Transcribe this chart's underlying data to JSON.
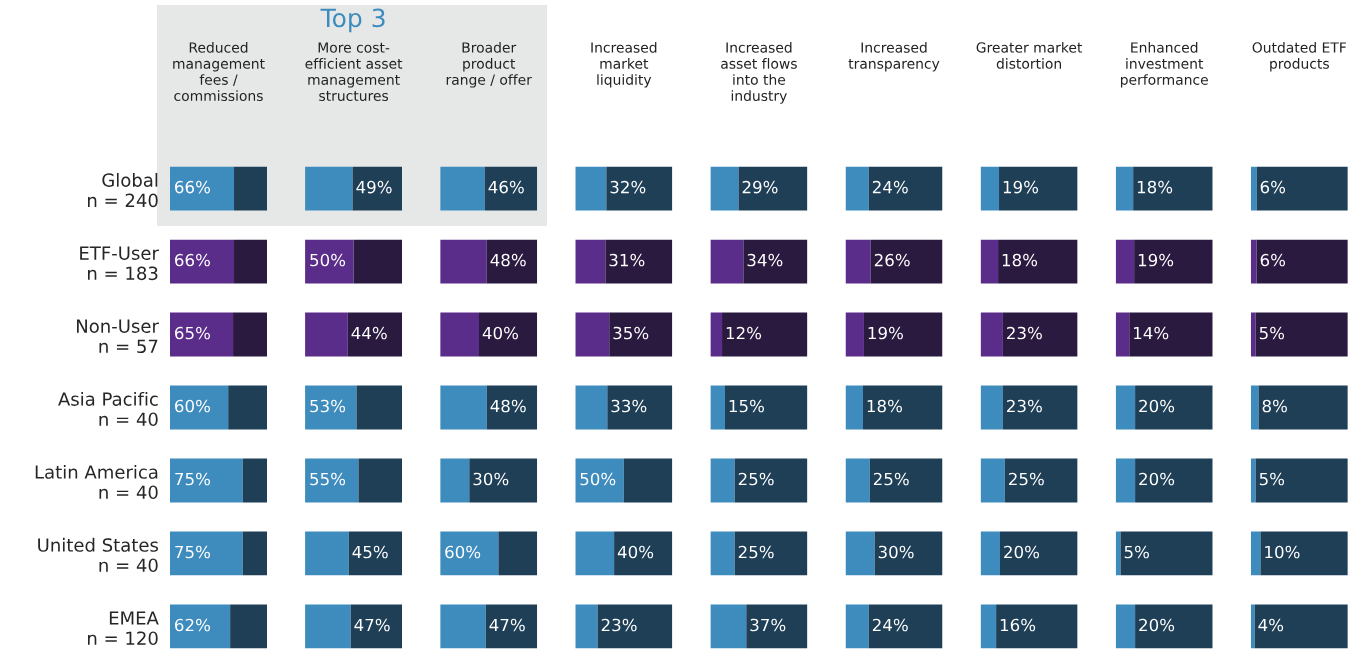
{
  "chart_data": [
    {
      "type": "bar",
      "orientation": "horizontal",
      "stacked": true,
      "tick_labels": "y",
      "title": "Reduced\nmanagement\nfees /\ncommissions",
      "xlim": [
        0,
        100
      ],
      "categories": [
        "Global\nn = 240",
        "ETF-User\nn = 183",
        "Non-User\nn = 57",
        "Asia Pacific\nn = 40",
        "Latin America\nn = 40",
        "United States\nn = 40",
        "EMEA\nn = 120"
      ],
      "series": [
        {
          "colors": [
            "#3e8bbe",
            "#5b2d8a",
            "#5b2d8a",
            "#3e8bbe",
            "#3e8bbe",
            "#3e8bbe",
            "#3e8bbe"
          ],
          "values": [
            66,
            66,
            65,
            60,
            75,
            75,
            62
          ],
          "value_labels": [
            "66%",
            "66%",
            "65%",
            "60%",
            "75%",
            "75%",
            "62%"
          ]
        },
        {
          "colors": [
            "#1f3f57",
            "#2b1a40",
            "#2b1a40",
            "#1f3f57",
            "#1f3f57",
            "#1f3f57",
            "#1f3f57"
          ],
          "values": [
            34,
            34,
            35,
            40,
            25,
            25,
            38
          ]
        }
      ]
    },
    {
      "type": "bar",
      "orientation": "horizontal",
      "stacked": true,
      "tick_labels": false,
      "title": "More cost-\nefficient asset\nmanagement\nstructures",
      "annotations": [
        "Top 3"
      ],
      "xlim": [
        0,
        100
      ],
      "series": [
        {
          "colors": [
            "#3e8bbe",
            "#5b2d8a",
            "#5b2d8a",
            "#3e8bbe",
            "#3e8bbe",
            "#3e8bbe",
            "#3e8bbe"
          ],
          "values": [
            49,
            50,
            44,
            53,
            55,
            45,
            47
          ],
          "value_labels": [
            "49%",
            "50%",
            "44%",
            "53%",
            "55%",
            "45%",
            "47%"
          ]
        },
        {
          "colors": [
            "#1f3f57",
            "#2b1a40",
            "#2b1a40",
            "#1f3f57",
            "#1f3f57",
            "#1f3f57",
            "#1f3f57"
          ],
          "values": [
            51,
            50,
            56,
            47,
            45,
            55,
            53
          ]
        }
      ]
    },
    {
      "type": "bar",
      "orientation": "horizontal",
      "stacked": true,
      "tick_labels": false,
      "title": "Broader\nproduct\nrange / offer",
      "xlim": [
        0,
        100
      ],
      "series": [
        {
          "colors": [
            "#3e8bbe",
            "#5b2d8a",
            "#5b2d8a",
            "#3e8bbe",
            "#3e8bbe",
            "#3e8bbe",
            "#3e8bbe"
          ],
          "values": [
            46,
            48,
            40,
            48,
            30,
            60,
            47
          ],
          "value_labels": [
            "46%",
            "48%",
            "40%",
            "48%",
            "30%",
            "60%",
            "47%"
          ]
        },
        {
          "colors": [
            "#1f3f57",
            "#2b1a40",
            "#2b1a40",
            "#1f3f57",
            "#1f3f57",
            "#1f3f57",
            "#1f3f57"
          ],
          "values": [
            54,
            52,
            60,
            52,
            70,
            40,
            53
          ]
        }
      ]
    },
    {
      "type": "bar",
      "orientation": "horizontal",
      "stacked": true,
      "tick_labels": false,
      "title": "Increased\nmarket\nliquidity",
      "xlim": [
        0,
        100
      ],
      "series": [
        {
          "colors": [
            "#3e8bbe",
            "#5b2d8a",
            "#5b2d8a",
            "#3e8bbe",
            "#3e8bbe",
            "#3e8bbe",
            "#3e8bbe"
          ],
          "values": [
            32,
            31,
            35,
            33,
            50,
            40,
            23
          ],
          "value_labels": [
            "32%",
            "31%",
            "35%",
            "33%",
            "50%",
            "40%",
            "23%"
          ]
        },
        {
          "colors": [
            "#1f3f57",
            "#2b1a40",
            "#2b1a40",
            "#1f3f57",
            "#1f3f57",
            "#1f3f57",
            "#1f3f57"
          ],
          "values": [
            68,
            69,
            65,
            67,
            50,
            60,
            77
          ]
        }
      ]
    },
    {
      "type": "bar",
      "orientation": "horizontal",
      "stacked": true,
      "tick_labels": false,
      "title": "Increased\nasset flows\ninto the\nindustry",
      "xlim": [
        0,
        100
      ],
      "series": [
        {
          "colors": [
            "#3e8bbe",
            "#5b2d8a",
            "#5b2d8a",
            "#3e8bbe",
            "#3e8bbe",
            "#3e8bbe",
            "#3e8bbe"
          ],
          "values": [
            29,
            34,
            12,
            15,
            25,
            25,
            37
          ],
          "value_labels": [
            "29%",
            "34%",
            "12%",
            "15%",
            "25%",
            "25%",
            "37%"
          ]
        },
        {
          "colors": [
            "#1f3f57",
            "#2b1a40",
            "#2b1a40",
            "#1f3f57",
            "#1f3f57",
            "#1f3f57",
            "#1f3f57"
          ],
          "values": [
            71,
            66,
            88,
            85,
            75,
            75,
            63
          ]
        }
      ]
    },
    {
      "type": "bar",
      "orientation": "horizontal",
      "stacked": true,
      "tick_labels": false,
      "title": "Increased\ntransparency",
      "xlim": [
        0,
        100
      ],
      "series": [
        {
          "colors": [
            "#3e8bbe",
            "#5b2d8a",
            "#5b2d8a",
            "#3e8bbe",
            "#3e8bbe",
            "#3e8bbe",
            "#3e8bbe"
          ],
          "values": [
            24,
            26,
            19,
            18,
            25,
            30,
            24
          ],
          "value_labels": [
            "24%",
            "26%",
            "19%",
            "18%",
            "25%",
            "30%",
            "24%"
          ]
        },
        {
          "colors": [
            "#1f3f57",
            "#2b1a40",
            "#2b1a40",
            "#1f3f57",
            "#1f3f57",
            "#1f3f57",
            "#1f3f57"
          ],
          "values": [
            76,
            74,
            81,
            82,
            75,
            70,
            76
          ]
        }
      ]
    },
    {
      "type": "bar",
      "orientation": "horizontal",
      "stacked": true,
      "tick_labels": false,
      "title": "Greater market\ndistortion",
      "xlim": [
        0,
        100
      ],
      "series": [
        {
          "colors": [
            "#3e8bbe",
            "#5b2d8a",
            "#5b2d8a",
            "#3e8bbe",
            "#3e8bbe",
            "#3e8bbe",
            "#3e8bbe"
          ],
          "values": [
            19,
            18,
            23,
            23,
            25,
            20,
            16
          ],
          "value_labels": [
            "19%",
            "18%",
            "23%",
            "23%",
            "25%",
            "20%",
            "16%"
          ]
        },
        {
          "colors": [
            "#1f3f57",
            "#2b1a40",
            "#2b1a40",
            "#1f3f57",
            "#1f3f57",
            "#1f3f57",
            "#1f3f57"
          ],
          "values": [
            81,
            82,
            77,
            77,
            75,
            80,
            84
          ]
        }
      ]
    },
    {
      "type": "bar",
      "orientation": "horizontal",
      "stacked": true,
      "tick_labels": false,
      "title": "Enhanced\ninvestment\nperformance",
      "xlim": [
        0,
        100
      ],
      "series": [
        {
          "colors": [
            "#3e8bbe",
            "#5b2d8a",
            "#5b2d8a",
            "#3e8bbe",
            "#3e8bbe",
            "#3e8bbe",
            "#3e8bbe"
          ],
          "values": [
            18,
            19,
            14,
            20,
            20,
            5,
            20
          ],
          "value_labels": [
            "18%",
            "19%",
            "14%",
            "20%",
            "20%",
            "5%",
            "20%"
          ]
        },
        {
          "colors": [
            "#1f3f57",
            "#2b1a40",
            "#2b1a40",
            "#1f3f57",
            "#1f3f57",
            "#1f3f57",
            "#1f3f57"
          ],
          "values": [
            82,
            81,
            86,
            80,
            80,
            95,
            80
          ]
        }
      ]
    },
    {
      "type": "bar",
      "orientation": "horizontal",
      "stacked": true,
      "tick_labels": false,
      "title": "Outdated ETF\nproducts",
      "xlim": [
        0,
        100
      ],
      "series": [
        {
          "colors": [
            "#3e8bbe",
            "#5b2d8a",
            "#5b2d8a",
            "#3e8bbe",
            "#3e8bbe",
            "#3e8bbe",
            "#3e8bbe"
          ],
          "values": [
            6,
            6,
            5,
            8,
            5,
            10,
            4
          ],
          "value_labels": [
            "6%",
            "6%",
            "5%",
            "8%",
            "5%",
            "10%",
            "4%"
          ]
        },
        {
          "colors": [
            "#1f3f57",
            "#2b1a40",
            "#2b1a40",
            "#1f3f57",
            "#1f3f57",
            "#1f3f57",
            "#1f3f57"
          ],
          "values": [
            94,
            94,
            95,
            92,
            95,
            90,
            96
          ]
        }
      ]
    }
  ]
}
